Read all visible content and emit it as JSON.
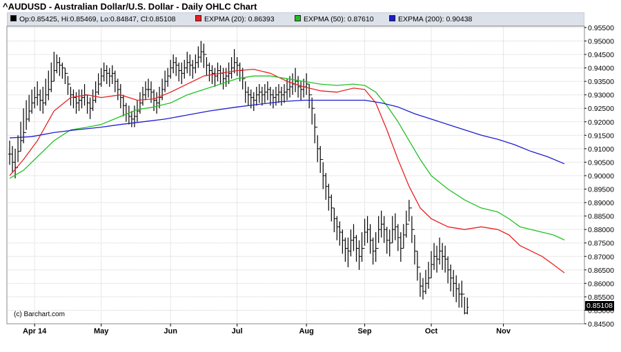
{
  "title": "^AUDUSD - Australian Dollar/U.S. Dollar - Daily OHLC Chart",
  "legend": {
    "ohlc": "Op:0.85425, Hi:0.85469, Lo:0.84847, Cl:0.85108",
    "ema20": "EXPMA (20): 0.86393",
    "ema50": "EXPMA (50): 0.87610",
    "ema200": "EXPMA (200): 0.90438"
  },
  "credit": "(c) Barchart.com",
  "last_price": "0.85108",
  "colors": {
    "ohlc": "#000000",
    "ema20": "#e82020",
    "ema50": "#20c020",
    "ema200": "#1c1cd0",
    "legend_bg": "#dce1ea",
    "grid": "#d0d0d0"
  },
  "chart_data": {
    "type": "line",
    "title": "^AUDUSD - Australian Dollar/U.S. Dollar - Daily OHLC Chart",
    "xlabel": "",
    "ylabel": "",
    "ylim": [
      0.845,
      0.9555
    ],
    "grid": true,
    "y_ticks": [
      "0.95500",
      "0.95000",
      "0.94500",
      "0.94000",
      "0.93500",
      "0.93000",
      "0.92500",
      "0.92000",
      "0.91500",
      "0.91000",
      "0.90500",
      "0.90000",
      "0.89500",
      "0.89000",
      "0.88500",
      "0.88000",
      "0.87500",
      "0.87000",
      "0.86500",
      "0.86000",
      "0.85500",
      "0.85000",
      "0.84500"
    ],
    "x_ticks": [
      "Apr 14",
      "May",
      "Jun",
      "Jul",
      "Aug",
      "Sep",
      "Oct",
      "Nov"
    ],
    "x_tick_index": [
      9,
      33,
      58,
      82,
      107,
      128,
      152,
      178
    ],
    "ohlc_bars": {
      "close": [
        0.908,
        0.905,
        0.903,
        0.909,
        0.913,
        0.916,
        0.921,
        0.924,
        0.927,
        0.929,
        0.93,
        0.928,
        0.927,
        0.93,
        0.932,
        0.935,
        0.939,
        0.942,
        0.941,
        0.94,
        0.938,
        0.934,
        0.93,
        0.929,
        0.927,
        0.928,
        0.929,
        0.93,
        0.927,
        0.925,
        0.928,
        0.931,
        0.934,
        0.937,
        0.939,
        0.938,
        0.937,
        0.938,
        0.935,
        0.932,
        0.929,
        0.926,
        0.923,
        0.922,
        0.921,
        0.922,
        0.924,
        0.927,
        0.93,
        0.932,
        0.932,
        0.931,
        0.928,
        0.927,
        0.929,
        0.932,
        0.935,
        0.937,
        0.94,
        0.942,
        0.941,
        0.939,
        0.938,
        0.94,
        0.942,
        0.941,
        0.94,
        0.942,
        0.944,
        0.946,
        0.945,
        0.941,
        0.939,
        0.938,
        0.937,
        0.939,
        0.938,
        0.936,
        0.937,
        0.938,
        0.94,
        0.942,
        0.941,
        0.939,
        0.936,
        0.931,
        0.93,
        0.929,
        0.928,
        0.93,
        0.931,
        0.93,
        0.931,
        0.932,
        0.93,
        0.929,
        0.93,
        0.931,
        0.93,
        0.931,
        0.932,
        0.933,
        0.934,
        0.935,
        0.933,
        0.932,
        0.933,
        0.934,
        0.93,
        0.925,
        0.918,
        0.91,
        0.906,
        0.9,
        0.896,
        0.892,
        0.888,
        0.884,
        0.881,
        0.879,
        0.876,
        0.873,
        0.872,
        0.876,
        0.877,
        0.873,
        0.87,
        0.873,
        0.879,
        0.88,
        0.876,
        0.872,
        0.873,
        0.88,
        0.882,
        0.88,
        0.876,
        0.875,
        0.88,
        0.881,
        0.877,
        0.873,
        0.878,
        0.882,
        0.888,
        0.88,
        0.872,
        0.866,
        0.859,
        0.857,
        0.86,
        0.862,
        0.867,
        0.87,
        0.869,
        0.872,
        0.87,
        0.869,
        0.865,
        0.862,
        0.86,
        0.858,
        0.856,
        0.856,
        0.849,
        0.8511
      ],
      "range_high": [
        0.913,
        0.911,
        0.91,
        0.915,
        0.92,
        0.925,
        0.928,
        0.93,
        0.932,
        0.933,
        0.935,
        0.932,
        0.933,
        0.936,
        0.939,
        0.942,
        0.946,
        0.945,
        0.944,
        0.942,
        0.94,
        0.937,
        0.933,
        0.932,
        0.931,
        0.932,
        0.932,
        0.934,
        0.93,
        0.929,
        0.932,
        0.935,
        0.938,
        0.94,
        0.942,
        0.941,
        0.94,
        0.941,
        0.939,
        0.936,
        0.934,
        0.93,
        0.927,
        0.926,
        0.924,
        0.926,
        0.928,
        0.931,
        0.933,
        0.935,
        0.936,
        0.935,
        0.932,
        0.931,
        0.933,
        0.936,
        0.939,
        0.94,
        0.943,
        0.945,
        0.944,
        0.942,
        0.942,
        0.943,
        0.946,
        0.945,
        0.943,
        0.945,
        0.948,
        0.95,
        0.949,
        0.944,
        0.942,
        0.941,
        0.94,
        0.942,
        0.941,
        0.94,
        0.94,
        0.942,
        0.944,
        0.947,
        0.944,
        0.942,
        0.94,
        0.935,
        0.933,
        0.932,
        0.931,
        0.933,
        0.934,
        0.933,
        0.934,
        0.935,
        0.933,
        0.932,
        0.933,
        0.934,
        0.933,
        0.934,
        0.936,
        0.937,
        0.938,
        0.94,
        0.937,
        0.935,
        0.936,
        0.938,
        0.934,
        0.929,
        0.923,
        0.915,
        0.911,
        0.905,
        0.901,
        0.897,
        0.893,
        0.888,
        0.885,
        0.883,
        0.88,
        0.877,
        0.877,
        0.88,
        0.882,
        0.878,
        0.876,
        0.879,
        0.884,
        0.885,
        0.882,
        0.877,
        0.879,
        0.885,
        0.887,
        0.885,
        0.881,
        0.88,
        0.885,
        0.886,
        0.882,
        0.879,
        0.882,
        0.887,
        0.891,
        0.885,
        0.878,
        0.872,
        0.864,
        0.862,
        0.865,
        0.868,
        0.872,
        0.875,
        0.874,
        0.877,
        0.875,
        0.874,
        0.87,
        0.867,
        0.865,
        0.863,
        0.86,
        0.861,
        0.855,
        0.8547
      ],
      "range_low": [
        0.904,
        0.901,
        0.899,
        0.905,
        0.909,
        0.912,
        0.917,
        0.92,
        0.923,
        0.925,
        0.926,
        0.924,
        0.923,
        0.926,
        0.928,
        0.931,
        0.935,
        0.938,
        0.937,
        0.936,
        0.934,
        0.93,
        0.926,
        0.925,
        0.923,
        0.924,
        0.925,
        0.926,
        0.923,
        0.921,
        0.924,
        0.927,
        0.93,
        0.933,
        0.935,
        0.934,
        0.933,
        0.934,
        0.931,
        0.928,
        0.925,
        0.922,
        0.92,
        0.919,
        0.918,
        0.918,
        0.92,
        0.923,
        0.926,
        0.928,
        0.929,
        0.927,
        0.924,
        0.923,
        0.925,
        0.928,
        0.931,
        0.933,
        0.936,
        0.938,
        0.937,
        0.935,
        0.934,
        0.936,
        0.938,
        0.937,
        0.936,
        0.938,
        0.94,
        0.942,
        0.94,
        0.937,
        0.935,
        0.934,
        0.933,
        0.935,
        0.934,
        0.932,
        0.933,
        0.934,
        0.936,
        0.938,
        0.937,
        0.935,
        0.932,
        0.927,
        0.926,
        0.925,
        0.924,
        0.926,
        0.927,
        0.926,
        0.927,
        0.928,
        0.926,
        0.925,
        0.926,
        0.927,
        0.926,
        0.927,
        0.928,
        0.929,
        0.93,
        0.931,
        0.929,
        0.928,
        0.929,
        0.93,
        0.925,
        0.919,
        0.912,
        0.905,
        0.901,
        0.895,
        0.891,
        0.887,
        0.883,
        0.879,
        0.876,
        0.874,
        0.871,
        0.868,
        0.866,
        0.87,
        0.872,
        0.868,
        0.865,
        0.868,
        0.874,
        0.875,
        0.871,
        0.867,
        0.868,
        0.875,
        0.877,
        0.875,
        0.871,
        0.87,
        0.875,
        0.876,
        0.872,
        0.868,
        0.873,
        0.877,
        0.883,
        0.875,
        0.867,
        0.861,
        0.855,
        0.854,
        0.856,
        0.858,
        0.862,
        0.865,
        0.864,
        0.867,
        0.865,
        0.864,
        0.86,
        0.857,
        0.855,
        0.853,
        0.851,
        0.851,
        0.8485,
        0.8485
      ]
    },
    "series": [
      {
        "name": "EXPMA (20)",
        "points": [
          [
            0,
            0.9
          ],
          [
            5,
            0.906
          ],
          [
            10,
            0.913
          ],
          [
            16,
            0.924
          ],
          [
            22,
            0.929
          ],
          [
            28,
            0.93
          ],
          [
            33,
            0.929
          ],
          [
            40,
            0.93
          ],
          [
            46,
            0.928
          ],
          [
            52,
            0.9285
          ],
          [
            58,
            0.931
          ],
          [
            64,
            0.934
          ],
          [
            70,
            0.937
          ],
          [
            76,
            0.938
          ],
          [
            82,
            0.939
          ],
          [
            88,
            0.9395
          ],
          [
            94,
            0.938
          ],
          [
            100,
            0.935
          ],
          [
            106,
            0.933
          ],
          [
            112,
            0.9315
          ],
          [
            118,
            0.931
          ],
          [
            124,
            0.9325
          ],
          [
            128,
            0.932
          ],
          [
            132,
            0.927
          ],
          [
            136,
            0.917
          ],
          [
            140,
            0.906
          ],
          [
            144,
            0.896
          ],
          [
            148,
            0.888
          ],
          [
            152,
            0.884
          ],
          [
            158,
            0.881
          ],
          [
            164,
            0.88
          ],
          [
            170,
            0.881
          ],
          [
            176,
            0.88
          ],
          [
            180,
            0.878
          ],
          [
            184,
            0.874
          ],
          [
            188,
            0.872
          ],
          [
            192,
            0.87
          ],
          [
            196,
            0.867
          ],
          [
            200,
            0.8639
          ]
        ]
      },
      {
        "name": "EXPMA (50)",
        "points": [
          [
            0,
            0.899
          ],
          [
            5,
            0.902
          ],
          [
            10,
            0.907
          ],
          [
            16,
            0.913
          ],
          [
            22,
            0.917
          ],
          [
            28,
            0.918
          ],
          [
            33,
            0.919
          ],
          [
            40,
            0.922
          ],
          [
            46,
            0.9245
          ],
          [
            52,
            0.9255
          ],
          [
            58,
            0.927
          ],
          [
            64,
            0.93
          ],
          [
            70,
            0.932
          ],
          [
            76,
            0.934
          ],
          [
            82,
            0.936
          ],
          [
            88,
            0.937
          ],
          [
            94,
            0.937
          ],
          [
            100,
            0.936
          ],
          [
            106,
            0.935
          ],
          [
            112,
            0.934
          ],
          [
            118,
            0.9335
          ],
          [
            124,
            0.934
          ],
          [
            128,
            0.9335
          ],
          [
            132,
            0.931
          ],
          [
            136,
            0.926
          ],
          [
            140,
            0.92
          ],
          [
            144,
            0.913
          ],
          [
            148,
            0.906
          ],
          [
            152,
            0.9
          ],
          [
            158,
            0.895
          ],
          [
            164,
            0.891
          ],
          [
            170,
            0.888
          ],
          [
            176,
            0.8865
          ],
          [
            180,
            0.884
          ],
          [
            184,
            0.881
          ],
          [
            188,
            0.88
          ],
          [
            192,
            0.879
          ],
          [
            196,
            0.878
          ],
          [
            200,
            0.8761
          ]
        ]
      },
      {
        "name": "EXPMA (200)",
        "points": [
          [
            0,
            0.914
          ],
          [
            8,
            0.9145
          ],
          [
            16,
            0.916
          ],
          [
            24,
            0.917
          ],
          [
            33,
            0.918
          ],
          [
            40,
            0.919
          ],
          [
            48,
            0.92
          ],
          [
            56,
            0.921
          ],
          [
            64,
            0.9225
          ],
          [
            72,
            0.924
          ],
          [
            82,
            0.9255
          ],
          [
            90,
            0.9265
          ],
          [
            98,
            0.9275
          ],
          [
            106,
            0.928
          ],
          [
            114,
            0.928
          ],
          [
            122,
            0.928
          ],
          [
            128,
            0.928
          ],
          [
            134,
            0.927
          ],
          [
            140,
            0.9255
          ],
          [
            146,
            0.923
          ],
          [
            152,
            0.921
          ],
          [
            158,
            0.919
          ],
          [
            164,
            0.917
          ],
          [
            170,
            0.915
          ],
          [
            176,
            0.9135
          ],
          [
            182,
            0.9115
          ],
          [
            188,
            0.909
          ],
          [
            194,
            0.907
          ],
          [
            200,
            0.9044
          ]
        ]
      }
    ]
  }
}
